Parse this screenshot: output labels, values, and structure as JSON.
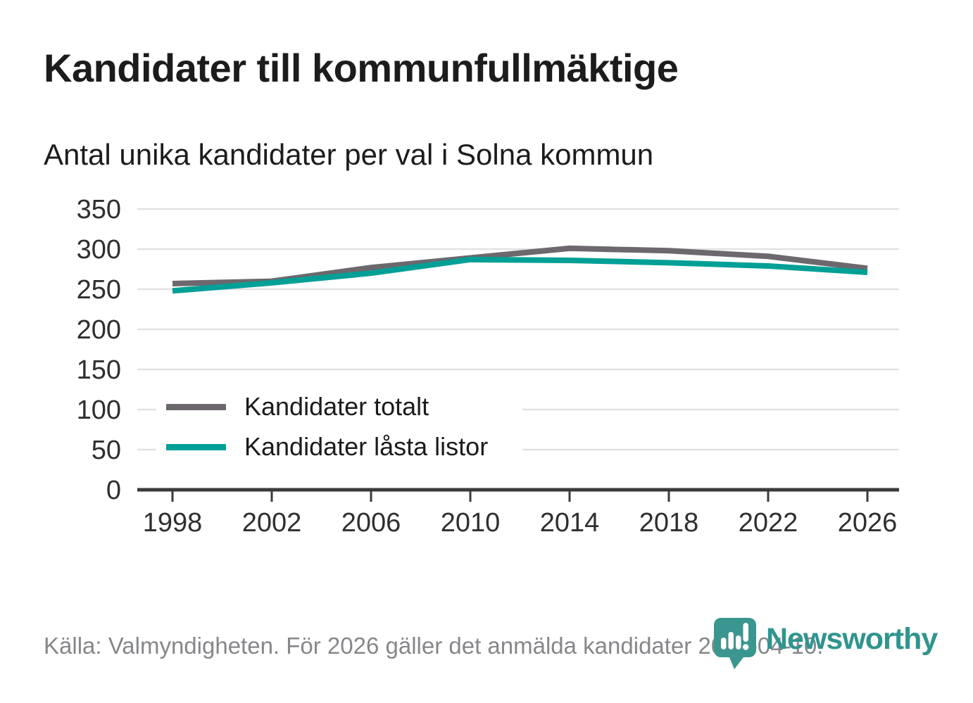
{
  "header": {
    "title": "Kandidater till kommunfullmäktige",
    "subtitle": "Antal unika kandidater per val i Solna kommun"
  },
  "chart_data": {
    "type": "line",
    "title": "Kandidater till kommunfullmäktige",
    "subtitle": "Antal unika kandidater per val i Solna kommun",
    "x": [
      "1998",
      "2002",
      "2006",
      "2010",
      "2014",
      "2018",
      "2022",
      "2026"
    ],
    "series": [
      {
        "name": "Kandidater totalt",
        "color": "#6c686d",
        "values": [
          257,
          260,
          277,
          289,
          301,
          298,
          291,
          276
        ]
      },
      {
        "name": "Kandidater låsta listor",
        "color": "#00a096",
        "values": [
          248,
          258,
          270,
          287,
          286,
          283,
          279,
          271
        ]
      }
    ],
    "ylim": [
      0,
      350
    ],
    "yticks": [
      0,
      50,
      100,
      150,
      200,
      250,
      300,
      350
    ],
    "grid": true,
    "legend_position": "inside chart, lower left"
  },
  "footer": {
    "source": "Källa: Valmyndigheten. För 2026 gäller det anmälda kandidater 2026-04-10.",
    "brand": "Newsworthy"
  },
  "theme": {
    "series_total_color": "#6c686d",
    "series_locked_color": "#00a096",
    "brand_teal": "#2f958e",
    "logo_teal": "#3a968f",
    "grid_color": "#e2e2e2",
    "axis_color": "#3a3a3a",
    "text_dark": "#1c1c1c",
    "text_muted": "#85878a"
  }
}
